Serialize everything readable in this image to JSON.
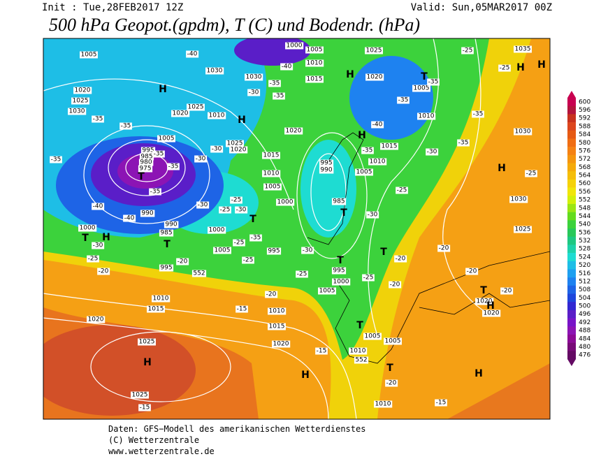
{
  "header": {
    "init": "Init : Tue,28FEB2017 12Z",
    "valid": "Valid: Sun,05MAR2017 00Z",
    "title": "500 hPa Geopot.(gpdm), T (C) und Bodendr. (hPa)"
  },
  "colorbar": {
    "ticks": [
      600,
      596,
      592,
      588,
      584,
      580,
      576,
      572,
      568,
      564,
      560,
      556,
      552,
      548,
      544,
      540,
      536,
      532,
      528,
      524,
      520,
      516,
      512,
      508,
      504,
      500,
      496,
      492,
      488,
      484,
      480,
      476
    ],
    "colors": [
      "#c80050",
      "#b4143c",
      "#c8321e",
      "#dc461e",
      "#e65a14",
      "#f06e14",
      "#f58214",
      "#f5960f",
      "#f5aa0a",
      "#f5be0a",
      "#f5d20a",
      "#f0e60a",
      "#d2f00a",
      "#9be614",
      "#64dc1e",
      "#3cd23c",
      "#28c85a",
      "#1ec882",
      "#1ed2aa",
      "#1edcd2",
      "#1ebee6",
      "#1ea0f0",
      "#1e82f0",
      "#1e64e6",
      "#1e46dc",
      "#3228d2",
      "#5a1ec8",
      "#7814c8",
      "#8c14b4",
      "#8c0a96",
      "#780a78",
      "#640a64"
    ]
  },
  "map": {
    "isobar_labels": [
      1005,
      1020,
      1025,
      1030,
      1030,
      1030,
      1020,
      1025,
      1010,
      1025,
      1020,
      1005,
      995,
      985,
      980,
      975,
      1000,
      1005,
      1010,
      1015,
      1025,
      1020,
      1005,
      1010,
      1035,
      1030,
      1020,
      1015,
      1010,
      1005,
      1000,
      995,
      990,
      1015,
      1010,
      1005,
      985,
      1000,
      990,
      990,
      985,
      1000,
      1005,
      995,
      995,
      995,
      1000,
      1005,
      1010,
      1015,
      1020,
      1010,
      1015,
      1020,
      1025,
      1025,
      1005,
      1005,
      1010,
      1010,
      1030,
      1025,
      1020,
      1020
    ],
    "temperature_labels": [
      -35,
      -35,
      -35,
      -40,
      -40,
      -35,
      -35,
      -30,
      -35,
      -35,
      -30,
      -30,
      -35,
      -40,
      -40,
      -30,
      -25,
      -30,
      -25,
      -25,
      -30,
      -35,
      -25,
      -25,
      -20,
      -20,
      -25,
      -20,
      -35,
      -40,
      -35,
      -35,
      -30,
      -35,
      -35,
      -25,
      -25,
      -25,
      -30,
      -20,
      -25,
      -20,
      -20,
      -20,
      -20,
      -25,
      -15,
      -15,
      -20,
      -15,
      -15,
      -30
    ],
    "geopotential_labels": [
      552,
      552
    ],
    "highs": [
      "H",
      "H",
      "H",
      "H",
      "H",
      "H",
      "H",
      "H",
      "H",
      "H",
      "H",
      "H"
    ],
    "lows": [
      "T",
      "T",
      "T",
      "T",
      "T",
      "T",
      "T",
      "T",
      "T",
      "T",
      "T"
    ]
  },
  "footer": [
    "Daten: GFS−Modell des amerikanischen Wetterdienstes",
    "(C) Wetterzentrale",
    "www.wetterzentrale.de"
  ]
}
